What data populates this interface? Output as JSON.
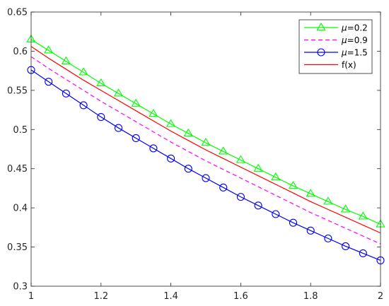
{
  "chart_data": {
    "type": "line",
    "title": "",
    "xlabel": "",
    "ylabel": "",
    "xlim": [
      1,
      2
    ],
    "ylim": [
      0.3,
      0.65
    ],
    "x_ticks": [
      1,
      1.2,
      1.4,
      1.6,
      1.8,
      2
    ],
    "x_tick_labels": [
      "1",
      "1.2",
      "1.4",
      "1.6",
      "1.8",
      "2"
    ],
    "y_ticks": [
      0.3,
      0.35,
      0.4,
      0.45,
      0.5,
      0.55,
      0.6,
      0.65
    ],
    "y_tick_labels": [
      "0.3",
      "0.35",
      "0.4",
      "0.45",
      "0.5",
      "0.55",
      "0.6",
      "0.65"
    ],
    "grid": false,
    "legend_position": "top-right",
    "x": [
      1,
      1.05,
      1.1,
      1.15,
      1.2,
      1.25,
      1.3,
      1.35,
      1.4,
      1.45,
      1.5,
      1.55,
      1.6,
      1.65,
      1.7,
      1.75,
      1.8,
      1.85,
      1.9,
      1.95,
      2
    ],
    "series": [
      {
        "name": "μ=0.2",
        "legend_symbol": "μ",
        "legend_rest": "=0.2",
        "color": "#00ff00",
        "line_style": "solid",
        "marker": "triangle",
        "values": [
          0.615,
          0.601,
          0.587,
          0.573,
          0.559,
          0.546,
          0.533,
          0.52,
          0.507,
          0.495,
          0.483,
          0.472,
          0.461,
          0.45,
          0.439,
          0.428,
          0.418,
          0.408,
          0.398,
          0.389,
          0.379
        ]
      },
      {
        "name": "μ=0.9",
        "legend_symbol": "μ",
        "legend_rest": "=0.9",
        "color": "#ff00ff",
        "line_style": "dashed",
        "marker": "none",
        "values": [
          0.593,
          0.578,
          0.564,
          0.55,
          0.536,
          0.523,
          0.51,
          0.497,
          0.484,
          0.472,
          0.46,
          0.449,
          0.438,
          0.427,
          0.416,
          0.405,
          0.394,
          0.384,
          0.374,
          0.364,
          0.354
        ]
      },
      {
        "name": "μ=1.5",
        "legend_symbol": "μ",
        "legend_rest": "=1.5",
        "color": "#0000ff",
        "line_style": "solid",
        "marker": "circle",
        "values": [
          0.576,
          0.561,
          0.546,
          0.531,
          0.516,
          0.502,
          0.489,
          0.476,
          0.463,
          0.45,
          0.438,
          0.426,
          0.414,
          0.403,
          0.392,
          0.381,
          0.371,
          0.361,
          0.351,
          0.342,
          0.333
        ]
      },
      {
        "name": "f(x)",
        "legend_symbol": "",
        "legend_rest": "f(x)",
        "color": "#ff0000",
        "line_style": "solid",
        "marker": "none",
        "values": [
          0.606,
          0.591,
          0.577,
          0.563,
          0.55,
          0.537,
          0.524,
          0.511,
          0.498,
          0.486,
          0.474,
          0.463,
          0.452,
          0.441,
          0.43,
          0.419,
          0.408,
          0.398,
          0.388,
          0.378,
          0.368
        ]
      }
    ]
  }
}
